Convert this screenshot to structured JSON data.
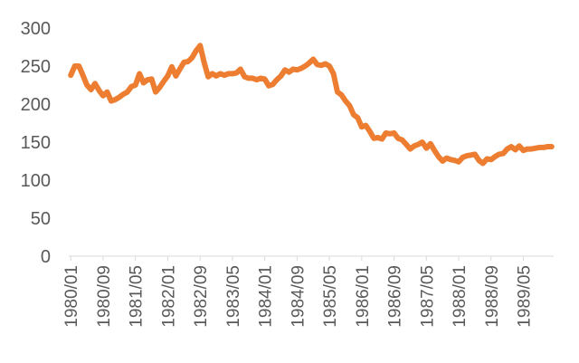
{
  "chart_data": {
    "type": "line",
    "title": "",
    "xlabel": "",
    "ylabel": "",
    "ylim": [
      0,
      300
    ],
    "yticks": [
      0,
      50,
      100,
      150,
      200,
      250,
      300
    ],
    "grid": false,
    "legend": "none",
    "x_tick_labels": [
      "1980/01",
      "1980/09",
      "1981/05",
      "1982/01",
      "1982/09",
      "1983/05",
      "1984/01",
      "1984/09",
      "1985/05",
      "1986/01",
      "1986/09",
      "1987/05",
      "1988/01",
      "1988/09",
      "1989/05"
    ],
    "series": [
      {
        "color": "#ED7D31",
        "x": [
          "1980/01",
          "1980/02",
          "1980/03",
          "1980/04",
          "1980/05",
          "1980/06",
          "1980/07",
          "1980/08",
          "1980/09",
          "1980/10",
          "1980/11",
          "1980/12",
          "1981/01",
          "1981/02",
          "1981/03",
          "1981/04",
          "1981/05",
          "1981/06",
          "1981/07",
          "1981/08",
          "1981/09",
          "1981/10",
          "1981/11",
          "1981/12",
          "1982/01",
          "1982/02",
          "1982/03",
          "1982/04",
          "1982/05",
          "1982/06",
          "1982/07",
          "1982/08",
          "1982/09",
          "1982/10",
          "1982/11",
          "1982/12",
          "1983/01",
          "1983/02",
          "1983/03",
          "1983/04",
          "1983/05",
          "1983/06",
          "1983/07",
          "1983/08",
          "1983/09",
          "1983/10",
          "1983/11",
          "1983/12",
          "1984/01",
          "1984/02",
          "1984/03",
          "1984/04",
          "1984/05",
          "1984/06",
          "1984/07",
          "1984/08",
          "1984/09",
          "1984/10",
          "1984/11",
          "1984/12",
          "1985/01",
          "1985/02",
          "1985/03",
          "1985/04",
          "1985/05",
          "1985/06",
          "1985/07",
          "1985/08",
          "1985/09",
          "1985/10",
          "1985/11",
          "1985/12",
          "1986/01",
          "1986/02",
          "1986/03",
          "1986/04",
          "1986/05",
          "1986/06",
          "1986/07",
          "1986/08",
          "1986/09",
          "1986/10",
          "1986/11",
          "1986/12",
          "1987/01",
          "1987/02",
          "1987/03",
          "1987/04",
          "1987/05",
          "1987/06",
          "1987/07",
          "1987/08",
          "1987/09",
          "1987/10",
          "1987/11",
          "1987/12",
          "1988/01",
          "1988/02",
          "1988/03",
          "1988/04",
          "1988/05",
          "1988/06",
          "1988/07",
          "1988/08",
          "1988/09",
          "1988/10",
          "1988/11",
          "1988/12",
          "1989/01",
          "1989/02",
          "1989/03",
          "1989/04",
          "1989/05",
          "1989/06",
          "1989/07",
          "1989/08",
          "1989/09",
          "1989/10",
          "1989/11",
          "1989/12"
        ],
        "values": [
          238,
          250,
          250,
          238,
          225,
          219,
          227,
          218,
          211,
          216,
          204,
          206,
          209,
          213,
          216,
          223,
          225,
          240,
          228,
          232,
          233,
          216,
          222,
          230,
          237,
          249,
          237,
          246,
          255,
          256,
          261,
          270,
          277,
          255,
          236,
          240,
          237,
          240,
          238,
          240,
          240,
          241,
          246,
          236,
          234,
          234,
          232,
          234,
          233,
          224,
          226,
          232,
          237,
          245,
          242,
          246,
          245,
          247,
          250,
          254,
          259,
          252,
          251,
          253,
          250,
          240,
          216,
          212,
          204,
          198,
          186,
          182,
          170,
          172,
          164,
          155,
          156,
          154,
          162,
          161,
          162,
          155,
          153,
          147,
          141,
          145,
          147,
          150,
          142,
          148,
          139,
          131,
          125,
          129,
          127,
          126,
          124,
          130,
          132,
          133,
          134,
          126,
          122,
          128,
          127,
          131,
          134,
          135,
          141,
          144,
          140,
          145,
          139,
          141,
          141,
          142,
          143,
          143,
          144,
          144
        ]
      }
    ]
  }
}
